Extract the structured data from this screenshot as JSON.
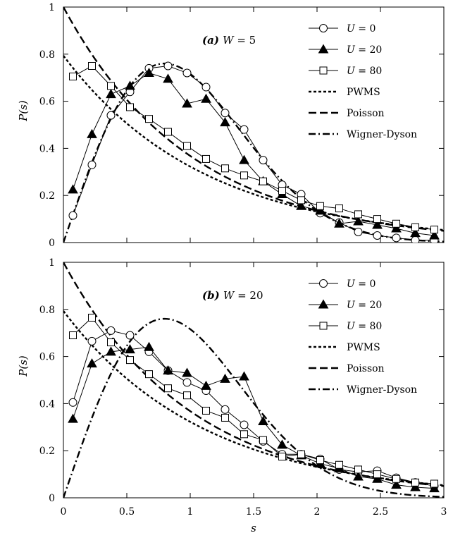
{
  "chart_data": [
    {
      "type": "line",
      "panel_label": "(a) W = 5",
      "xlabel": "s",
      "ylabel": "P(s)",
      "xlim": [
        0,
        3
      ],
      "ylim": [
        0,
        1
      ],
      "x_ticks": [
        "0",
        "0.5",
        "1",
        "1.5",
        "2",
        "2.5",
        "3"
      ],
      "y_ticks": [
        "0",
        "0.2",
        "0.4",
        "0.6",
        "0.8",
        "1"
      ],
      "legend_position": "top-right",
      "series": [
        {
          "name": "U = 0",
          "marker": "circle",
          "line": "solid",
          "x": [
            0.075,
            0.225,
            0.375,
            0.525,
            0.675,
            0.825,
            0.975,
            1.125,
            1.275,
            1.425,
            1.575,
            1.725,
            1.875,
            2.025,
            2.175,
            2.325,
            2.475,
            2.625,
            2.775,
            2.925
          ],
          "y": [
            0.115,
            0.33,
            0.54,
            0.64,
            0.74,
            0.75,
            0.72,
            0.66,
            0.55,
            0.48,
            0.35,
            0.245,
            0.205,
            0.125,
            0.085,
            0.045,
            0.03,
            0.02,
            0.01,
            0.01
          ]
        },
        {
          "name": "U = 20",
          "marker": "triangle",
          "line": "solid",
          "x": [
            0.075,
            0.225,
            0.375,
            0.525,
            0.675,
            0.825,
            0.975,
            1.125,
            1.275,
            1.425,
            1.575,
            1.725,
            1.875,
            2.025,
            2.175,
            2.325,
            2.475,
            2.625,
            2.775,
            2.925
          ],
          "y": [
            0.225,
            0.46,
            0.63,
            0.665,
            0.72,
            0.695,
            0.59,
            0.61,
            0.51,
            0.35,
            0.26,
            0.205,
            0.155,
            0.135,
            0.08,
            0.09,
            0.075,
            0.06,
            0.04,
            0.03
          ]
        },
        {
          "name": "U = 80",
          "marker": "square",
          "line": "solid",
          "x": [
            0.075,
            0.225,
            0.375,
            0.525,
            0.675,
            0.825,
            0.975,
            1.125,
            1.275,
            1.425,
            1.575,
            1.725,
            1.875,
            2.025,
            2.175,
            2.325,
            2.475,
            2.625,
            2.775,
            2.925
          ],
          "y": [
            0.705,
            0.75,
            0.665,
            0.575,
            0.525,
            0.47,
            0.41,
            0.355,
            0.315,
            0.285,
            0.26,
            0.22,
            0.18,
            0.155,
            0.145,
            0.12,
            0.1,
            0.08,
            0.065,
            0.055
          ]
        },
        {
          "name": "PWMS",
          "marker": "none",
          "line": "dotted"
        },
        {
          "name": "Poisson",
          "marker": "none",
          "line": "dashed"
        },
        {
          "name": "Wigner-Dyson",
          "marker": "none",
          "line": "dashdot"
        }
      ]
    },
    {
      "type": "line",
      "panel_label": "(b) W = 20",
      "xlabel": "s",
      "ylabel": "P(s)",
      "xlim": [
        0,
        3
      ],
      "ylim": [
        0,
        1
      ],
      "x_ticks": [
        "0",
        "0.5",
        "1",
        "1.5",
        "2",
        "2.5",
        "3"
      ],
      "y_ticks": [
        "0",
        "0.2",
        "0.4",
        "0.6",
        "0.8",
        "1"
      ],
      "legend_position": "top-right",
      "series": [
        {
          "name": "U = 0",
          "marker": "circle",
          "line": "solid",
          "x": [
            0.075,
            0.225,
            0.375,
            0.525,
            0.675,
            0.825,
            0.975,
            1.125,
            1.275,
            1.425,
            1.575,
            1.725,
            1.875,
            2.025,
            2.175,
            2.325,
            2.475,
            2.625,
            2.775,
            2.925
          ],
          "y": [
            0.405,
            0.665,
            0.71,
            0.69,
            0.62,
            0.54,
            0.49,
            0.455,
            0.375,
            0.31,
            0.24,
            0.185,
            0.185,
            0.165,
            0.12,
            0.11,
            0.115,
            0.085,
            0.065,
            0.05
          ]
        },
        {
          "name": "U = 20",
          "marker": "triangle",
          "line": "solid",
          "x": [
            0.075,
            0.225,
            0.375,
            0.525,
            0.675,
            0.825,
            0.975,
            1.125,
            1.275,
            1.425,
            1.575,
            1.725,
            1.875,
            2.025,
            2.175,
            2.325,
            2.475,
            2.625,
            2.775,
            2.925
          ],
          "y": [
            0.335,
            0.57,
            0.62,
            0.63,
            0.64,
            0.54,
            0.53,
            0.475,
            0.505,
            0.515,
            0.325,
            0.225,
            0.18,
            0.145,
            0.125,
            0.09,
            0.08,
            0.055,
            0.045,
            0.04
          ]
        },
        {
          "name": "U = 80",
          "marker": "square",
          "line": "solid",
          "x": [
            0.075,
            0.225,
            0.375,
            0.525,
            0.675,
            0.825,
            0.975,
            1.125,
            1.275,
            1.425,
            1.575,
            1.725,
            1.875,
            2.025,
            2.175,
            2.325,
            2.475,
            2.625,
            2.775,
            2.925
          ],
          "y": [
            0.69,
            0.765,
            0.66,
            0.585,
            0.525,
            0.465,
            0.435,
            0.37,
            0.34,
            0.27,
            0.245,
            0.175,
            0.185,
            0.16,
            0.14,
            0.12,
            0.1,
            0.08,
            0.065,
            0.06
          ]
        },
        {
          "name": "PWMS",
          "marker": "none",
          "line": "dotted"
        },
        {
          "name": "Poisson",
          "marker": "none",
          "line": "dashed"
        },
        {
          "name": "Wigner-Dyson",
          "marker": "none",
          "line": "dashdot"
        }
      ]
    }
  ]
}
